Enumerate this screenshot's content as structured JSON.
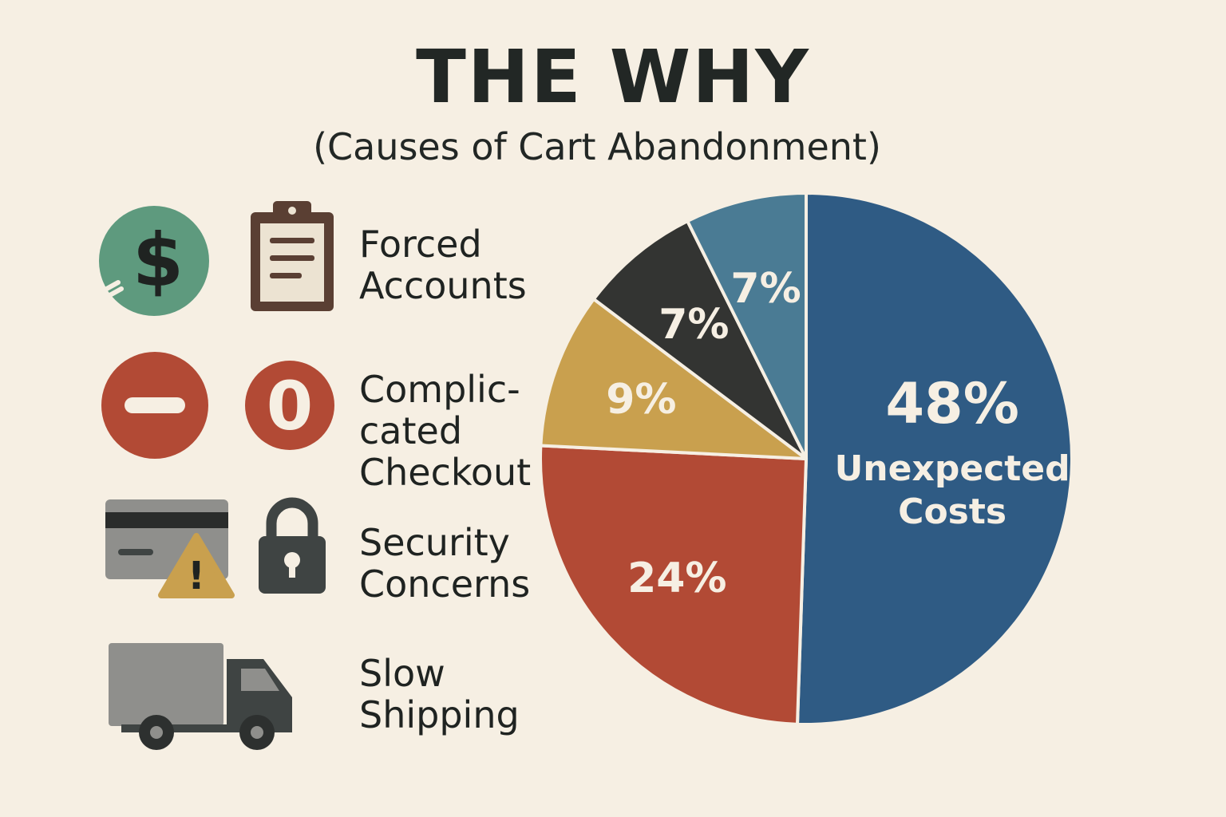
{
  "header": {
    "title": "THE WHY",
    "subtitle": "(Causes of Cart Abandonment)"
  },
  "legend": [
    {
      "label": "Forced\nAccounts",
      "icons": [
        "dollar-icon",
        "clipboard-icon"
      ]
    },
    {
      "label": "Complic-\ncated\nCheckout",
      "icons": [
        "minus-circle-icon",
        "zero-circle-icon"
      ]
    },
    {
      "label": "Security\nConcerns",
      "icons": [
        "credit-card-warning-icon",
        "padlock-icon"
      ]
    },
    {
      "label": "Slow\nShipping",
      "icons": [
        "truck-icon"
      ]
    }
  ],
  "icon_text": {
    "dollar": "$",
    "zero": "0",
    "warning": "!"
  },
  "chart_data": {
    "type": "pie",
    "slices": [
      {
        "label": "Unexpected Costs",
        "value": 48,
        "display": "48%",
        "color": "#2f5b84"
      },
      {
        "label": "",
        "value": 24,
        "display": "24%",
        "color": "#b24a35"
      },
      {
        "label": "",
        "value": 9,
        "display": "9%",
        "color": "#c9a04e"
      },
      {
        "label": "",
        "value": 7,
        "display": "7%",
        "color": "#333432"
      },
      {
        "label": "",
        "value": 7,
        "display": "7%",
        "color": "#4a7b94"
      }
    ]
  },
  "colors": {
    "background": "#f6efe3",
    "dollar_green": "#5e9a7e",
    "red": "#b24a35",
    "dark": "#3f4443",
    "gray": "#8f8f8c",
    "warning_yellow": "#c9a04e",
    "clipboard_brown": "#5a3f33"
  }
}
